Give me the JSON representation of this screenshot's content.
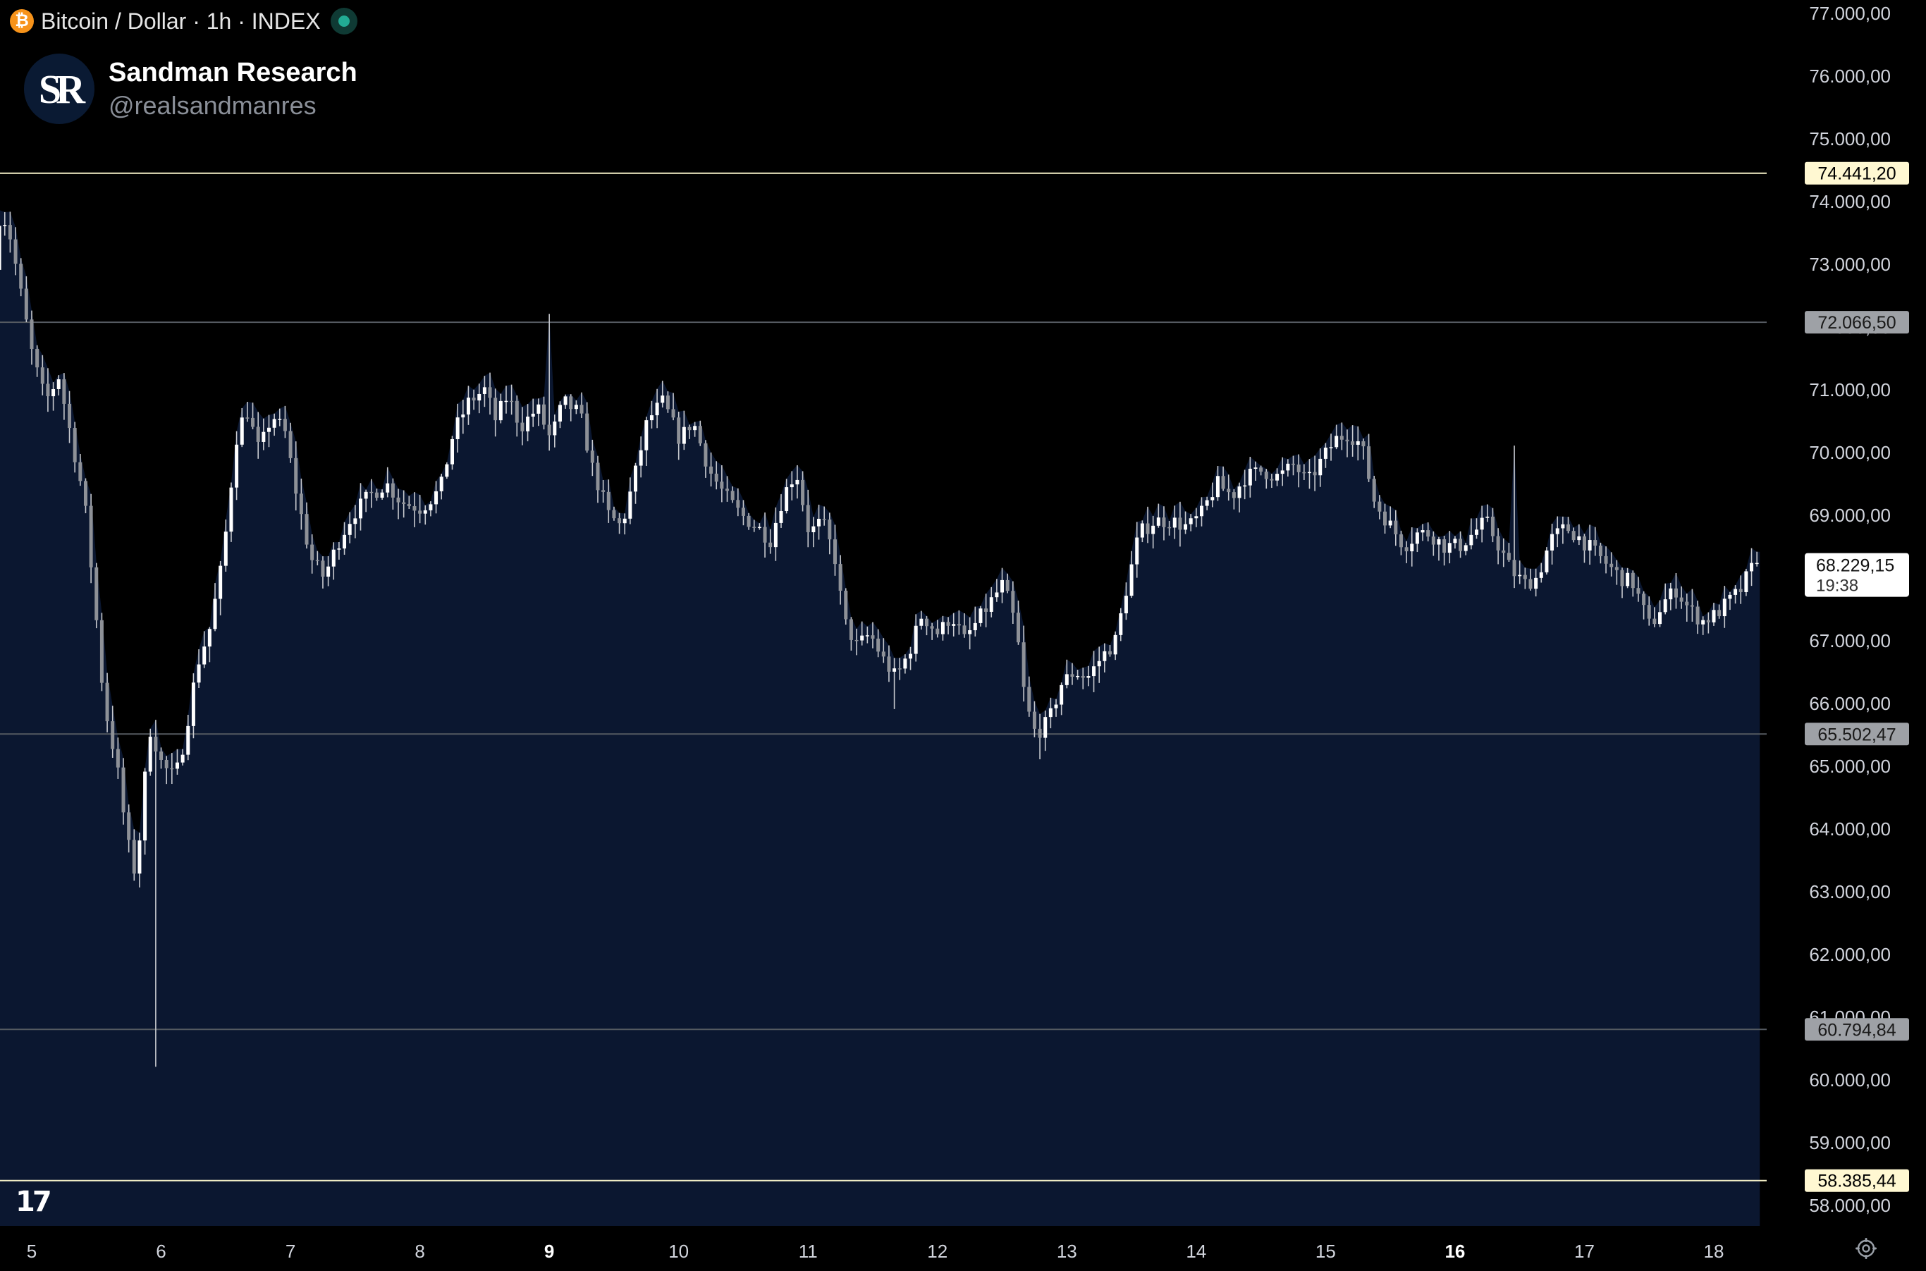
{
  "header": {
    "symbol_title": "Bitcoin / Dollar · 1h · INDEX",
    "coin_icon": "bitcoin-icon",
    "status_icon": "market-open-dot-icon"
  },
  "brand": {
    "logo_text": "SR",
    "name": "Sandman Research",
    "handle": "@realsandmanres"
  },
  "colors": {
    "background": "#000000",
    "area_fill": "#0b1730",
    "candle": "#ffffff",
    "outer_line": "#f5f0c8",
    "inner_line": "#555a61",
    "axis_text": "#d1d4dc"
  },
  "icons": {
    "watermark": "tradingview-logo-icon",
    "settings": "settings-gear-icon"
  },
  "chart_data": {
    "type": "candlestick",
    "ylim": [
      57750,
      77300
    ],
    "y_ticks": [
      "77.000,00",
      "76.000,00",
      "75.000,00",
      "74.000,00",
      "73.000,00",
      "72.000,00",
      "71.000,00",
      "70.000,00",
      "69.000,00",
      "68.000,00",
      "67.000,00",
      "66.000,00",
      "65.000,00",
      "64.000,00",
      "63.000,00",
      "62.000,00",
      "61.000,00",
      "60.000,00",
      "59.000,00",
      "58.000,00"
    ],
    "x_ticks": [
      {
        "label": "5",
        "day": 5,
        "bold": false
      },
      {
        "label": "6",
        "day": 6,
        "bold": false
      },
      {
        "label": "7",
        "day": 7,
        "bold": false
      },
      {
        "label": "8",
        "day": 8,
        "bold": false
      },
      {
        "label": "9",
        "day": 9,
        "bold": true
      },
      {
        "label": "10",
        "day": 10,
        "bold": false
      },
      {
        "label": "11",
        "day": 11,
        "bold": false
      },
      {
        "label": "12",
        "day": 12,
        "bold": false
      },
      {
        "label": "13",
        "day": 13,
        "bold": false
      },
      {
        "label": "14",
        "day": 14,
        "bold": false
      },
      {
        "label": "15",
        "day": 15,
        "bold": false
      },
      {
        "label": "16",
        "day": 16,
        "bold": true
      },
      {
        "label": "17",
        "day": 17,
        "bold": false
      },
      {
        "label": "18",
        "day": 18,
        "bold": false
      }
    ],
    "levels": [
      {
        "value": 74441.2,
        "label": "74.441,20",
        "style": "outer"
      },
      {
        "value": 72066.5,
        "label": "72.066,50",
        "style": "inner"
      },
      {
        "value": 65502.47,
        "label": "65.502,47",
        "style": "inner"
      },
      {
        "value": 60794.84,
        "label": "60.794,84",
        "style": "inner"
      },
      {
        "value": 58385.44,
        "label": "58.385,44",
        "style": "outer"
      }
    ],
    "last_price": {
      "value": 68229.15,
      "label": "68.229,15",
      "countdown": "19:38"
    },
    "start_day": 4.75,
    "end_day": 18.37,
    "anchors": [
      [
        4.75,
        72900
      ],
      [
        4.8,
        73900
      ],
      [
        4.88,
        73400
      ],
      [
        4.96,
        72500
      ],
      [
        5.05,
        71500
      ],
      [
        5.15,
        70800
      ],
      [
        5.25,
        71200
      ],
      [
        5.33,
        70400
      ],
      [
        5.45,
        69200
      ],
      [
        5.52,
        67800
      ],
      [
        5.6,
        66000
      ],
      [
        5.7,
        65000
      ],
      [
        5.78,
        63800
      ],
      [
        5.85,
        63200
      ],
      [
        5.9,
        64500
      ],
      [
        5.96,
        65600
      ],
      [
        6.05,
        65000
      ],
      [
        6.15,
        64800
      ],
      [
        6.22,
        65400
      ],
      [
        6.32,
        66600
      ],
      [
        6.42,
        67200
      ],
      [
        6.52,
        68300
      ],
      [
        6.62,
        70200
      ],
      [
        6.7,
        70700
      ],
      [
        6.8,
        70000
      ],
      [
        6.9,
        70600
      ],
      [
        7.0,
        70300
      ],
      [
        7.1,
        69200
      ],
      [
        7.2,
        68300
      ],
      [
        7.3,
        68000
      ],
      [
        7.42,
        68600
      ],
      [
        7.52,
        69000
      ],
      [
        7.65,
        69300
      ],
      [
        7.78,
        69500
      ],
      [
        7.9,
        69200
      ],
      [
        8.05,
        69100
      ],
      [
        8.2,
        69400
      ],
      [
        8.3,
        70300
      ],
      [
        8.42,
        70800
      ],
      [
        8.55,
        71000
      ],
      [
        8.62,
        70500
      ],
      [
        8.72,
        70900
      ],
      [
        8.82,
        70400
      ],
      [
        8.95,
        70700
      ],
      [
        9.05,
        70200
      ],
      [
        9.15,
        70800
      ],
      [
        9.28,
        70600
      ],
      [
        9.38,
        69700
      ],
      [
        9.5,
        69000
      ],
      [
        9.6,
        68800
      ],
      [
        9.7,
        69600
      ],
      [
        9.8,
        70500
      ],
      [
        9.92,
        70800
      ],
      [
        10.05,
        70200
      ],
      [
        10.15,
        70500
      ],
      [
        10.28,
        69700
      ],
      [
        10.4,
        69300
      ],
      [
        10.52,
        69000
      ],
      [
        10.65,
        68800
      ],
      [
        10.75,
        68600
      ],
      [
        10.85,
        69300
      ],
      [
        10.95,
        69700
      ],
      [
        11.05,
        68700
      ],
      [
        11.15,
        68900
      ],
      [
        11.25,
        68300
      ],
      [
        11.32,
        67300
      ],
      [
        11.42,
        66900
      ],
      [
        11.52,
        67100
      ],
      [
        11.62,
        66700
      ],
      [
        11.72,
        66400
      ],
      [
        11.82,
        66800
      ],
      [
        11.92,
        67400
      ],
      [
        12.05,
        67100
      ],
      [
        12.15,
        67400
      ],
      [
        12.25,
        67000
      ],
      [
        12.35,
        67300
      ],
      [
        12.45,
        67600
      ],
      [
        12.55,
        67900
      ],
      [
        12.65,
        67200
      ],
      [
        12.72,
        66000
      ],
      [
        12.8,
        65500
      ],
      [
        12.9,
        65700
      ],
      [
        13.0,
        66300
      ],
      [
        13.1,
        66500
      ],
      [
        13.2,
        66400
      ],
      [
        13.3,
        66700
      ],
      [
        13.42,
        67000
      ],
      [
        13.5,
        67800
      ],
      [
        13.6,
        68700
      ],
      [
        13.72,
        68900
      ],
      [
        13.85,
        68900
      ],
      [
        13.98,
        68800
      ],
      [
        14.08,
        69000
      ],
      [
        14.2,
        69500
      ],
      [
        14.32,
        69300
      ],
      [
        14.42,
        69600
      ],
      [
        14.55,
        69700
      ],
      [
        14.68,
        69600
      ],
      [
        14.8,
        69800
      ],
      [
        14.9,
        69500
      ],
      [
        15.02,
        69900
      ],
      [
        15.12,
        70200
      ],
      [
        15.22,
        70300
      ],
      [
        15.32,
        70100
      ],
      [
        15.42,
        69200
      ],
      [
        15.55,
        68800
      ],
      [
        15.65,
        68500
      ],
      [
        15.75,
        68700
      ],
      [
        15.85,
        68700
      ],
      [
        15.95,
        68500
      ],
      [
        16.08,
        68500
      ],
      [
        16.18,
        68700
      ],
      [
        16.28,
        68900
      ],
      [
        16.38,
        68500
      ],
      [
        16.48,
        68100
      ],
      [
        16.58,
        67900
      ],
      [
        16.68,
        68000
      ],
      [
        16.78,
        68600
      ],
      [
        16.9,
        68800
      ],
      [
        17.02,
        68600
      ],
      [
        17.12,
        68400
      ],
      [
        17.22,
        68200
      ],
      [
        17.32,
        68000
      ],
      [
        17.42,
        67900
      ],
      [
        17.55,
        67200
      ],
      [
        17.65,
        67600
      ],
      [
        17.75,
        67800
      ],
      [
        17.85,
        67500
      ],
      [
        17.95,
        67300
      ],
      [
        18.05,
        67400
      ],
      [
        18.15,
        67600
      ],
      [
        18.25,
        67800
      ],
      [
        18.35,
        68229
      ]
    ],
    "wicks": [
      {
        "day": 5.95,
        "low": 60200
      },
      {
        "day": 8.98,
        "high": 72200
      },
      {
        "day": 11.67,
        "low": 65900
      },
      {
        "day": 12.78,
        "low": 65100
      },
      {
        "day": 16.47,
        "high": 70100
      }
    ]
  }
}
